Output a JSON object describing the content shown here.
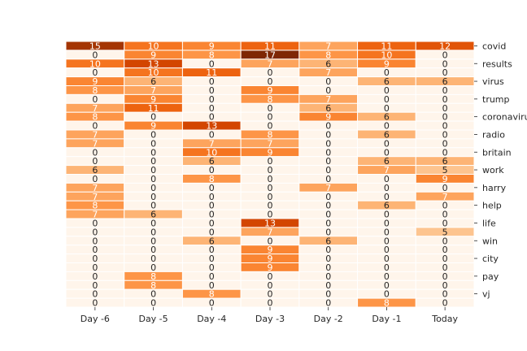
{
  "chart_data": {
    "type": "heatmap",
    "title": "",
    "xlabel": "",
    "ylabel": "",
    "columns": [
      "Day -6",
      "Day -5",
      "Day -4",
      "Day -3",
      "Day -2",
      "Day -1",
      "Today"
    ],
    "row_tick_labels": [
      "covid",
      "results",
      "virus",
      "trump",
      "coronavirus",
      "radio",
      "britain",
      "work",
      "harry",
      "help",
      "life",
      "win",
      "city",
      "pay",
      "vj"
    ],
    "row_label_every": 2,
    "values": [
      [
        15,
        10,
        9,
        11,
        7,
        11,
        12
      ],
      [
        0,
        9,
        8,
        17,
        8,
        10,
        0
      ],
      [
        10,
        13,
        0,
        7,
        6,
        9,
        0
      ],
      [
        0,
        10,
        11,
        0,
        7,
        0,
        0
      ],
      [
        9,
        6,
        0,
        0,
        0,
        6,
        6
      ],
      [
        8,
        7,
        0,
        9,
        0,
        0,
        0
      ],
      [
        0,
        9,
        0,
        8,
        7,
        0,
        0
      ],
      [
        7,
        11,
        0,
        0,
        6,
        0,
        0
      ],
      [
        8,
        0,
        0,
        0,
        9,
        6,
        0
      ],
      [
        0,
        9,
        13,
        0,
        0,
        0,
        0
      ],
      [
        7,
        0,
        0,
        8,
        0,
        6,
        0
      ],
      [
        7,
        0,
        7,
        7,
        0,
        0,
        0
      ],
      [
        0,
        0,
        10,
        9,
        0,
        0,
        0
      ],
      [
        0,
        0,
        6,
        0,
        0,
        6,
        6
      ],
      [
        6,
        0,
        0,
        0,
        0,
        7,
        5
      ],
      [
        0,
        0,
        8,
        0,
        0,
        0,
        9
      ],
      [
        7,
        0,
        0,
        0,
        7,
        0,
        0
      ],
      [
        7,
        0,
        0,
        0,
        0,
        0,
        7
      ],
      [
        8,
        0,
        0,
        0,
        0,
        6,
        0
      ],
      [
        7,
        6,
        0,
        0,
        0,
        0,
        0
      ],
      [
        0,
        0,
        0,
        13,
        0,
        0,
        0
      ],
      [
        0,
        0,
        0,
        7,
        0,
        0,
        5
      ],
      [
        0,
        0,
        6,
        0,
        6,
        0,
        0
      ],
      [
        0,
        0,
        0,
        9,
        0,
        0,
        0
      ],
      [
        0,
        0,
        0,
        9,
        0,
        0,
        0
      ],
      [
        0,
        0,
        0,
        9,
        0,
        0,
        0
      ],
      [
        0,
        8,
        0,
        0,
        0,
        0,
        0
      ],
      [
        0,
        8,
        0,
        0,
        0,
        0,
        0
      ],
      [
        0,
        0,
        8,
        0,
        0,
        0,
        0
      ],
      [
        0,
        0,
        0,
        0,
        0,
        8,
        0
      ]
    ],
    "color_scale": {
      "min": 0,
      "max": 17,
      "colormap": "Oranges",
      "low_color": "#fff5eb",
      "high_color": "#7f2704"
    },
    "grid_lines_color": "#ffffff",
    "annotate_cells": true,
    "colorbar": false,
    "legend": "none"
  }
}
